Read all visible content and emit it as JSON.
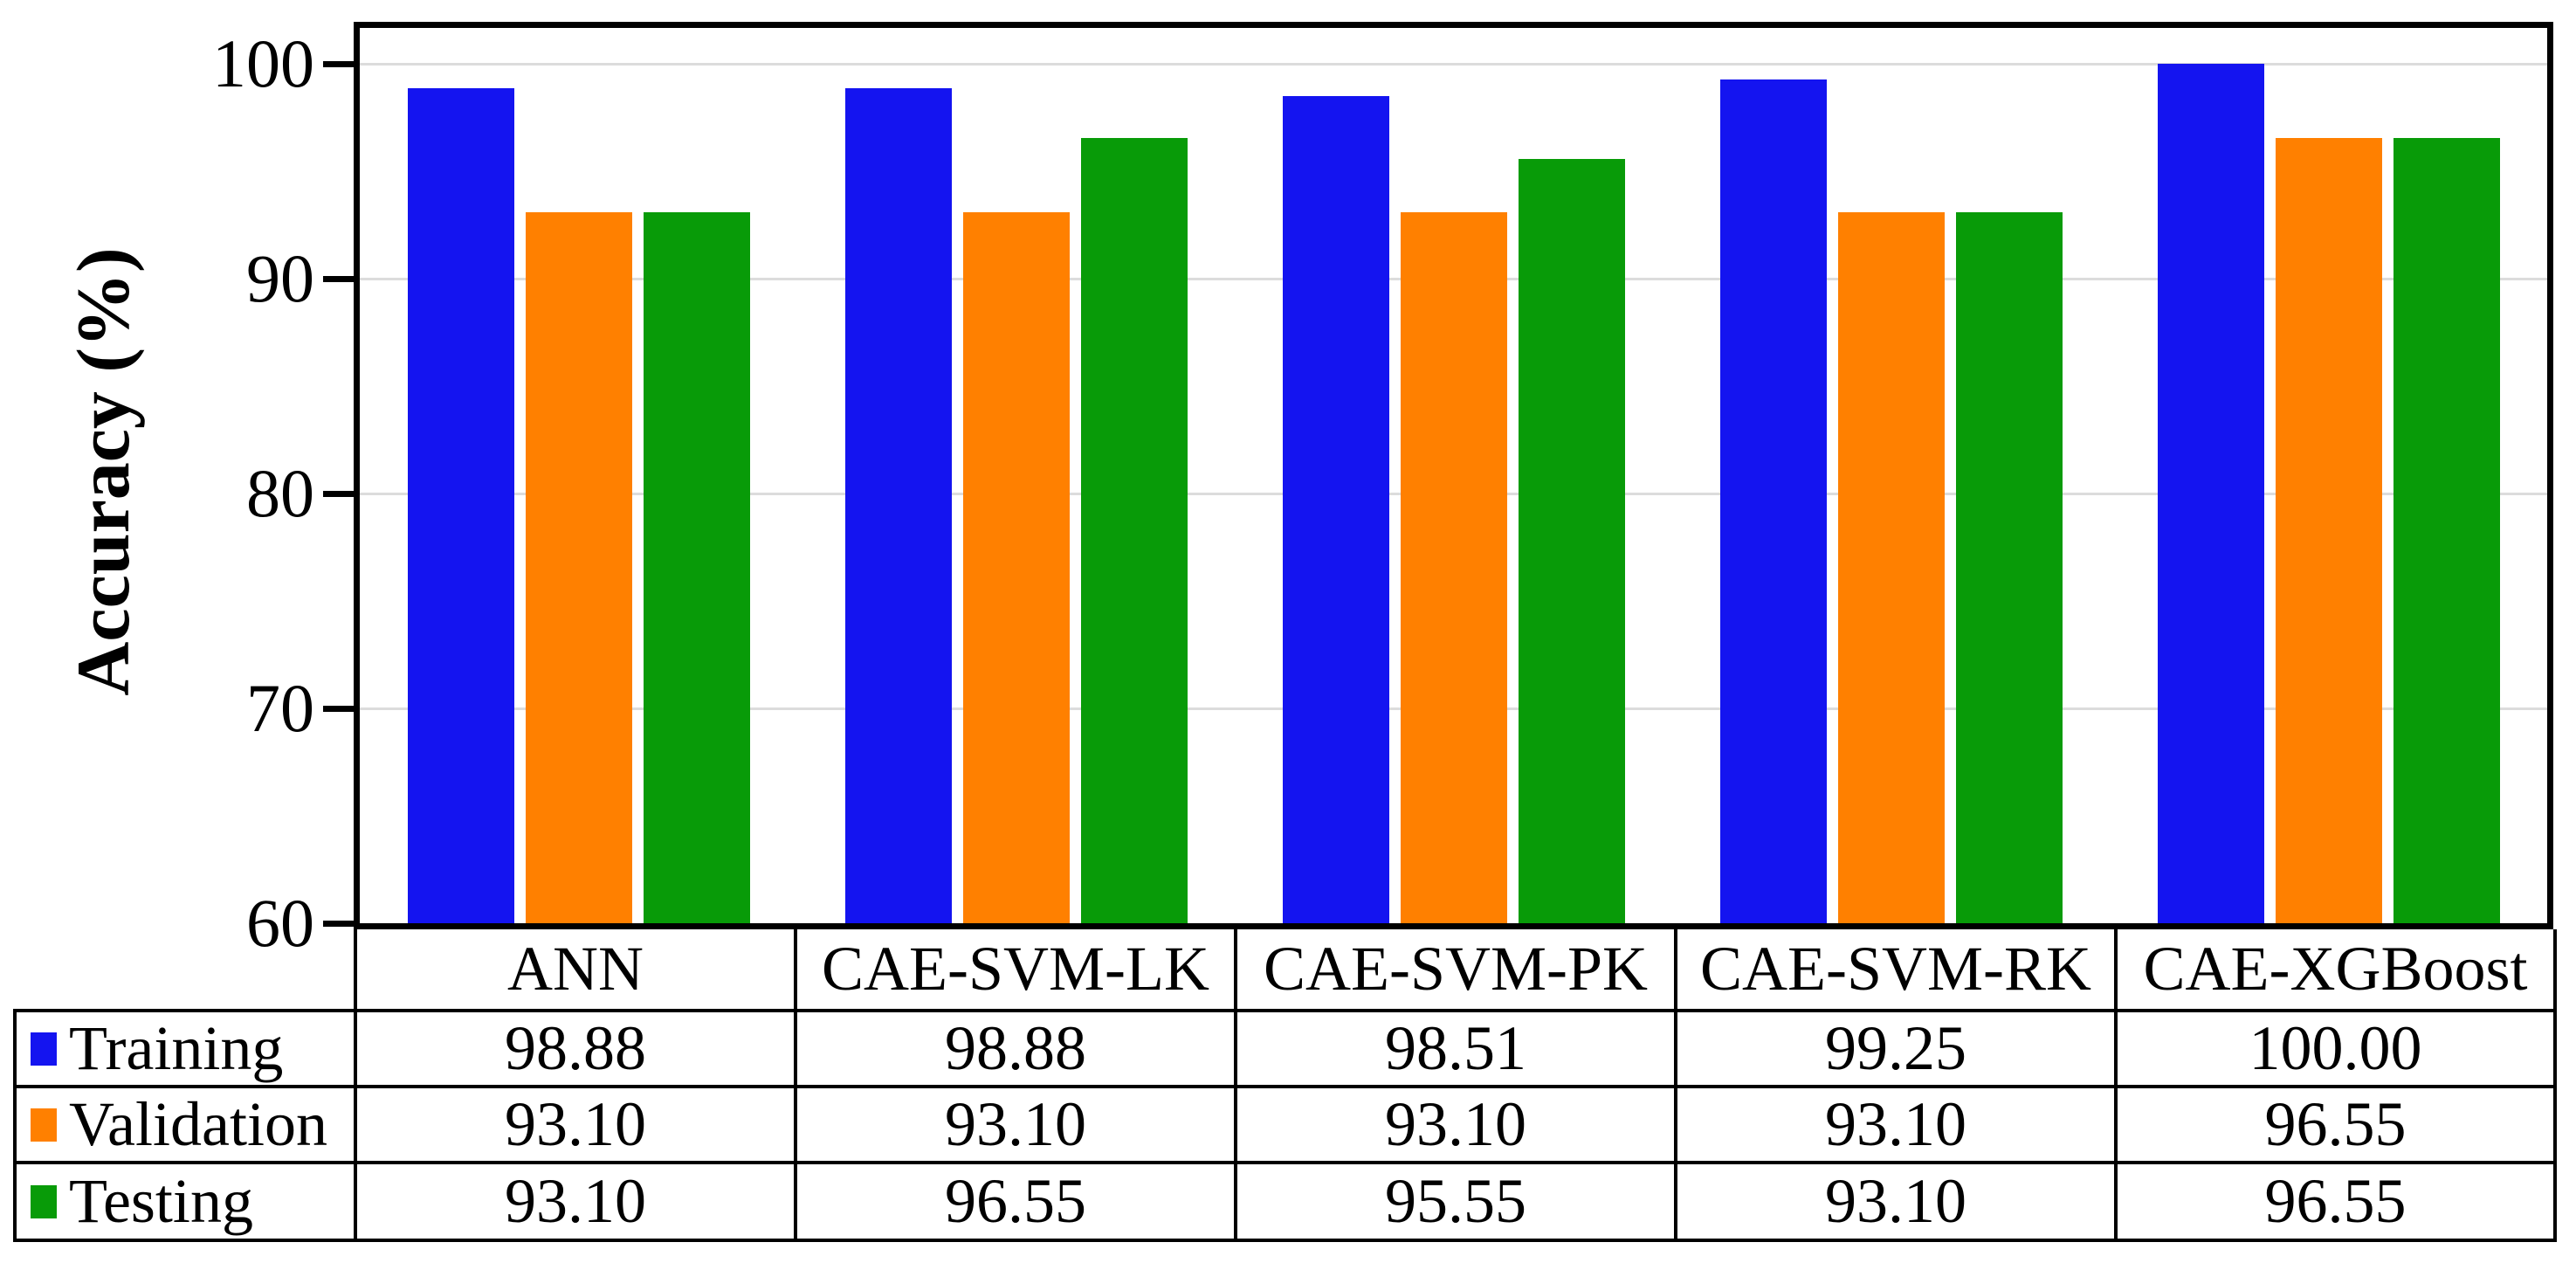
{
  "chart_data": {
    "type": "bar",
    "title": "",
    "categories": [
      "ANN",
      "CAE-SVM-LK",
      "CAE-SVM-PK",
      "CAE-SVM-RK",
      "CAE-XGBoost"
    ],
    "series": [
      {
        "name": "Training",
        "color": "#1414F0",
        "values": [
          98.88,
          98.88,
          98.51,
          99.25,
          100.0
        ]
      },
      {
        "name": "Validation",
        "color": "#FF8000",
        "values": [
          93.1,
          93.1,
          93.1,
          93.1,
          96.55
        ]
      },
      {
        "name": "Testing",
        "color": "#089B08",
        "values": [
          93.1,
          96.55,
          95.55,
          93.1,
          96.55
        ]
      }
    ],
    "xlabel": "",
    "ylabel": "Accuracy (%)",
    "ylim": [
      60,
      102
    ],
    "yticks": [
      100,
      90,
      80,
      70,
      60
    ],
    "grid": true,
    "gridcolor": "#DCDCDC",
    "legend_position": "table-left"
  },
  "table": {
    "corner_label": "",
    "columns": [
      "ANN",
      "CAE-SVM-LK",
      "CAE-SVM-PK",
      "CAE-SVM-RK",
      "CAE-XGBoost"
    ],
    "rows": [
      {
        "label": "Training",
        "swatch": "#1414F0",
        "values": [
          "98.88",
          "98.88",
          "98.51",
          "99.25",
          "100.00"
        ]
      },
      {
        "label": "Validation",
        "swatch": "#FF8000",
        "values": [
          "93.10",
          "93.10",
          "93.10",
          "93.10",
          "96.55"
        ]
      },
      {
        "label": "Testing",
        "swatch": "#089B08",
        "values": [
          "93.10",
          "96.55",
          "95.55",
          "93.10",
          "96.55"
        ]
      }
    ]
  }
}
